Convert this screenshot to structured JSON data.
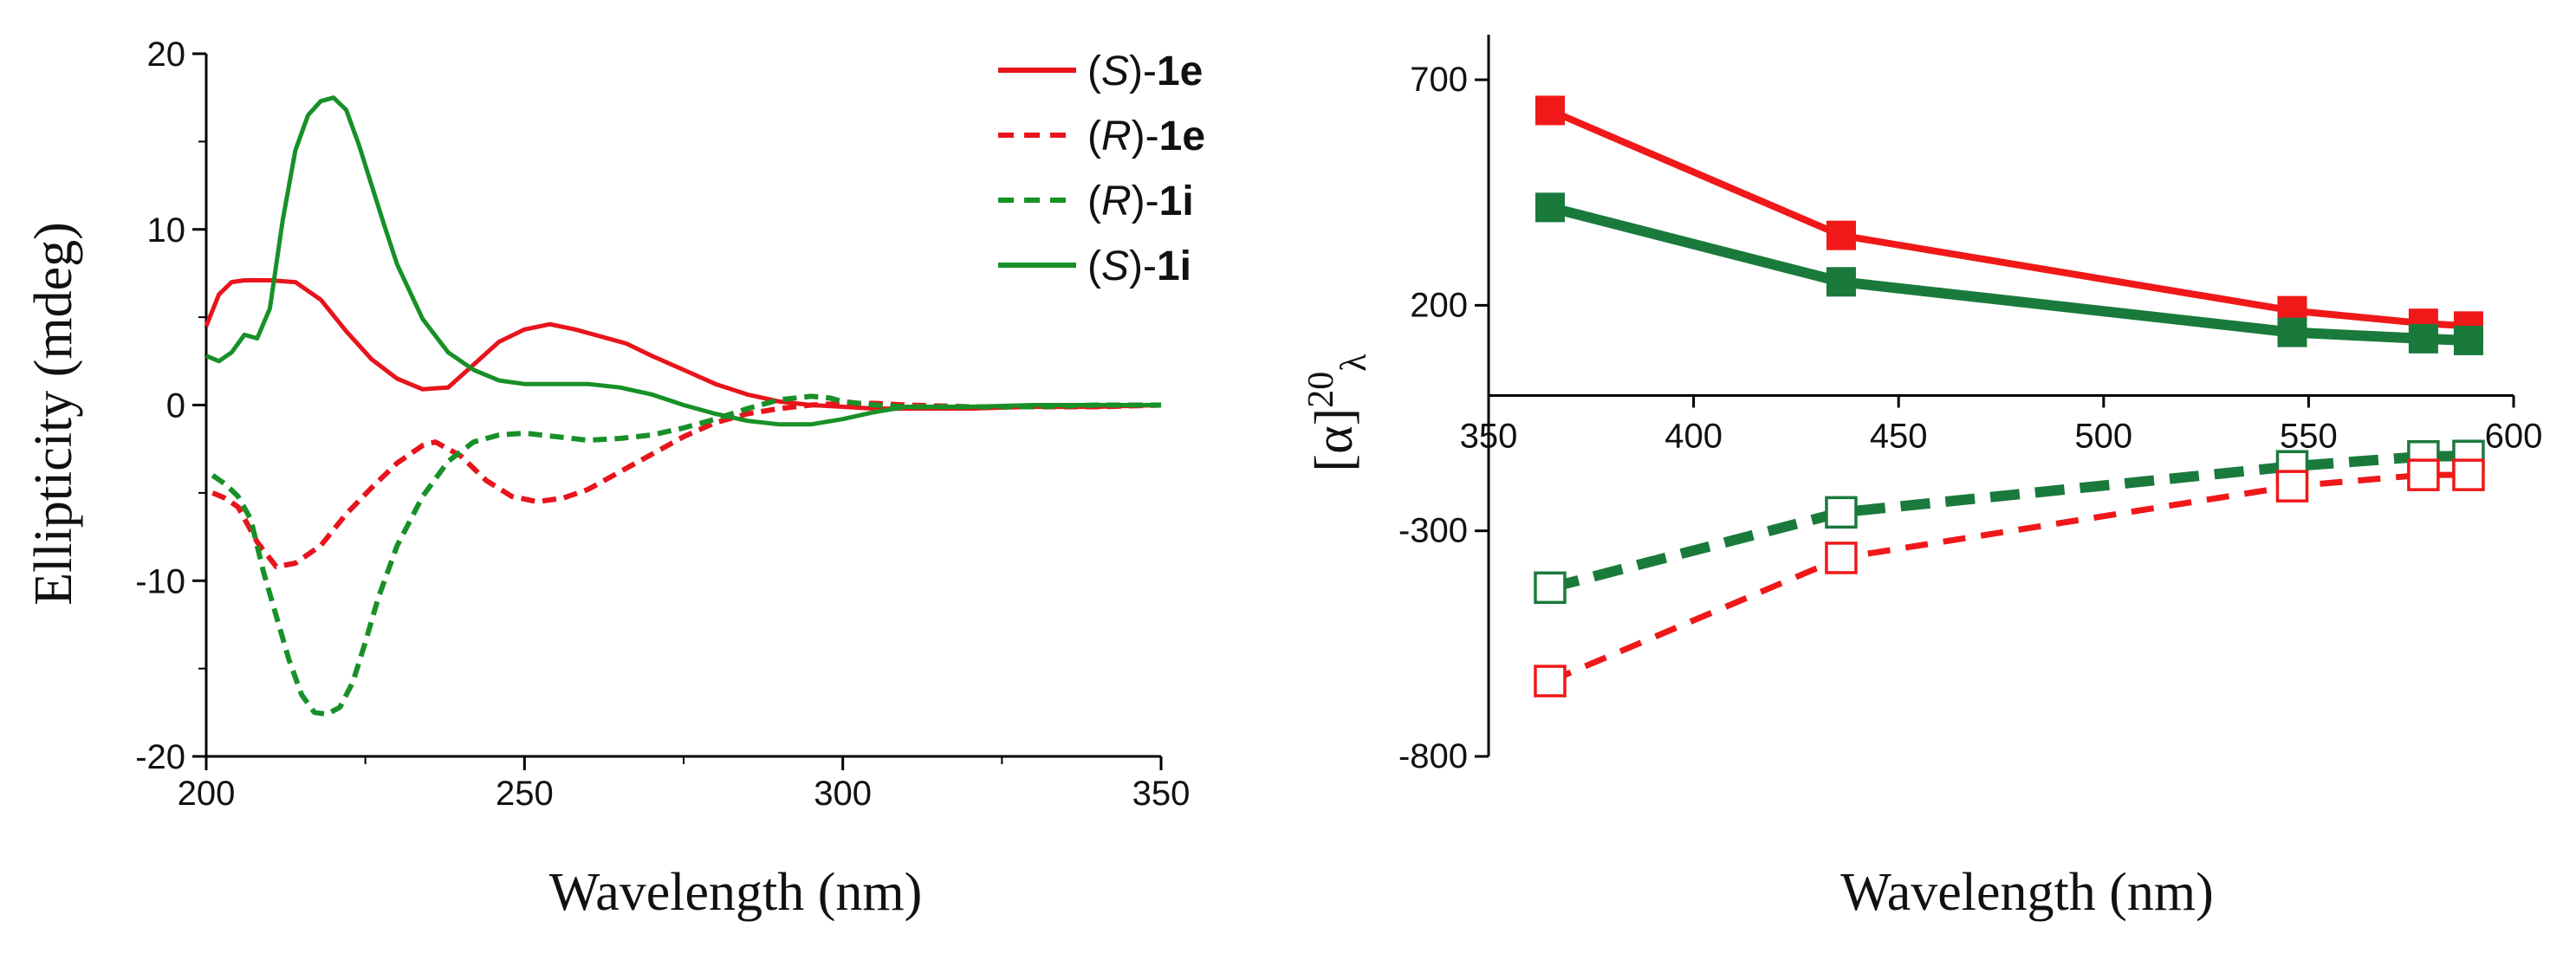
{
  "chart_data": [
    {
      "type": "line",
      "xlabel": "Wavelength (nm)",
      "ylabel": "Ellipticity (mdeg)",
      "xlim": [
        200,
        350
      ],
      "ylim": [
        -20,
        20
      ],
      "xticks": [
        200,
        250,
        300,
        350
      ],
      "xtick_labels": [
        "200",
        "250",
        "300",
        "350"
      ],
      "yticks": [
        -20,
        -10,
        0,
        10,
        20
      ],
      "ytick_labels": [
        "-20",
        "-10",
        "0",
        "10",
        "20"
      ],
      "grid": false,
      "legend_position": "top-right",
      "series": [
        {
          "name": "(S)-1e",
          "legend": {
            "prefix": "(",
            "stereo": "S",
            "infix": ")-",
            "compound": "1e"
          },
          "color": "#e8141c",
          "style": "solid",
          "x": [
            200,
            202,
            204,
            206,
            210,
            214,
            218,
            222,
            226,
            230,
            234,
            238,
            242,
            246,
            250,
            254,
            258,
            262,
            266,
            270,
            275,
            280,
            285,
            290,
            295,
            300,
            305,
            310,
            320,
            330,
            340,
            350
          ],
          "y": [
            4.5,
            6.3,
            7.0,
            7.1,
            7.1,
            7.0,
            6.0,
            4.2,
            2.6,
            1.5,
            0.9,
            1.0,
            2.3,
            3.6,
            4.3,
            4.6,
            4.3,
            3.9,
            3.5,
            2.8,
            2.0,
            1.2,
            0.6,
            0.2,
            0.0,
            -0.1,
            -0.2,
            -0.2,
            -0.2,
            -0.1,
            -0.1,
            0.0
          ]
        },
        {
          "name": "(R)-1e",
          "legend": {
            "prefix": "(",
            "stereo": "R",
            "infix": ")-",
            "compound": "1e"
          },
          "color": "#e8141c",
          "style": "dashed",
          "x": [
            201,
            203,
            205,
            208,
            211,
            214,
            218,
            222,
            226,
            230,
            234,
            236,
            240,
            244,
            248,
            252,
            256,
            260,
            265,
            270,
            275,
            280,
            285,
            290,
            295,
            300,
            305,
            310,
            320,
            330,
            340,
            350
          ],
          "y": [
            -5.0,
            -5.3,
            -5.8,
            -7.8,
            -9.2,
            -9.0,
            -8.0,
            -6.2,
            -4.7,
            -3.3,
            -2.3,
            -2.1,
            -2.9,
            -4.3,
            -5.2,
            -5.5,
            -5.3,
            -4.8,
            -3.8,
            -2.8,
            -1.8,
            -1.0,
            -0.5,
            -0.2,
            0.0,
            0.1,
            0.1,
            0.0,
            -0.1,
            -0.1,
            -0.1,
            0.0
          ]
        },
        {
          "name": "(R)-1i",
          "legend": {
            "prefix": "(",
            "stereo": "R",
            "infix": ")-",
            "compound": "1i"
          },
          "color": "#189028",
          "style": "dashed",
          "x": [
            201,
            203,
            205,
            207,
            209,
            211,
            213,
            215,
            217,
            219,
            221,
            223,
            225,
            227,
            230,
            234,
            238,
            242,
            246,
            250,
            255,
            260,
            265,
            270,
            275,
            280,
            285,
            290,
            295,
            298,
            300,
            305,
            310,
            320,
            330,
            340,
            350
          ],
          "y": [
            -4.0,
            -4.5,
            -5.2,
            -6.5,
            -9.5,
            -12.0,
            -14.5,
            -16.5,
            -17.5,
            -17.6,
            -17.2,
            -15.8,
            -13.5,
            -11.0,
            -8.0,
            -5.2,
            -3.2,
            -2.1,
            -1.7,
            -1.6,
            -1.8,
            -2.0,
            -1.9,
            -1.7,
            -1.3,
            -0.8,
            -0.2,
            0.3,
            0.5,
            0.4,
            0.2,
            0.0,
            -0.1,
            -0.1,
            -0.1,
            0.0,
            0.0
          ]
        },
        {
          "name": "(S)-1i",
          "legend": {
            "prefix": "(",
            "stereo": "S",
            "infix": ")-",
            "compound": "1i"
          },
          "color": "#189028",
          "style": "solid",
          "x": [
            200,
            202,
            204,
            206,
            208,
            210,
            212,
            214,
            216,
            218,
            220,
            222,
            224,
            226,
            228,
            230,
            234,
            238,
            242,
            246,
            250,
            255,
            260,
            265,
            270,
            275,
            280,
            285,
            290,
            295,
            300,
            305,
            310,
            320,
            330,
            340,
            350
          ],
          "y": [
            2.8,
            2.5,
            3.0,
            4.0,
            3.8,
            5.5,
            10.5,
            14.5,
            16.5,
            17.3,
            17.5,
            16.8,
            14.8,
            12.5,
            10.2,
            8.0,
            4.9,
            3.0,
            2.0,
            1.4,
            1.2,
            1.2,
            1.2,
            1.0,
            0.6,
            0.0,
            -0.5,
            -0.9,
            -1.1,
            -1.1,
            -0.8,
            -0.4,
            -0.1,
            -0.1,
            0.0,
            0.0,
            0.0
          ]
        }
      ]
    },
    {
      "type": "line",
      "xlabel": "Wavelength (nm)",
      "ylabel": {
        "base": "[α]",
        "superscript": "20",
        "subscript": "λ"
      },
      "xlim": [
        350,
        600
      ],
      "ylim": [
        -800,
        800
      ],
      "xticks": [
        350,
        400,
        450,
        500,
        550,
        600
      ],
      "xtick_labels": [
        "350",
        "400",
        "450",
        "500",
        "550",
        "600"
      ],
      "yticks": [
        -800,
        -300,
        200,
        700
      ],
      "ytick_labels": [
        "-800",
        "-300",
        "200",
        "700"
      ],
      "x_axis_crosses_at": 0,
      "grid": false,
      "series": [
        {
          "name": "(S)-1e",
          "color": "#f01818",
          "style": "solid",
          "marker": "filled-square",
          "x": [
            365,
            436,
            546,
            578,
            589
          ],
          "y": [
            632,
            355,
            188,
            160,
            154
          ]
        },
        {
          "name": "(S)-1i",
          "color": "#1a7a3c",
          "style": "solid",
          "marker": "filled-square",
          "x": [
            365,
            436,
            546,
            578,
            589
          ],
          "y": [
            417,
            252,
            140,
            126,
            122
          ]
        },
        {
          "name": "(R)-1i",
          "color": "#1a7a3c",
          "style": "dashed",
          "marker": "open-square",
          "x": [
            365,
            436,
            546,
            578,
            589
          ],
          "y": [
            -426,
            -259,
            -157,
            -135,
            -134
          ]
        },
        {
          "name": "(R)-1e",
          "color": "#f01818",
          "style": "dashed",
          "marker": "open-square",
          "x": [
            365,
            436,
            546,
            578,
            589
          ],
          "y": [
            -633,
            -360,
            -201,
            -176,
            -176
          ]
        }
      ]
    }
  ]
}
